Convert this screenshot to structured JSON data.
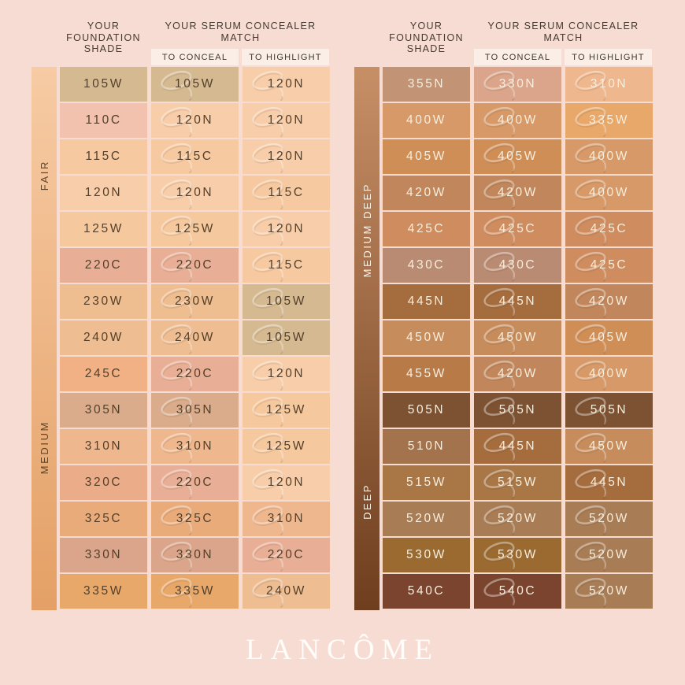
{
  "header": {
    "foundation_label": "YOUR FOUNDATION SHADE",
    "match_label": "YOUR SERUM CONCEALER MATCH",
    "conceal_label": "TO CONCEAL",
    "highlight_label": "TO HIGHLIGHT"
  },
  "logo": "LANCÔME",
  "colors": {
    "background": "#f6dcd3",
    "chip_background": "#faeee6",
    "header_text": "#463931",
    "logo_text": "#fffdf9"
  },
  "chart_data": {
    "type": "table",
    "columns": [
      "YOUR FOUNDATION SHADE",
      "TO CONCEAL",
      "TO HIGHLIGHT"
    ],
    "shade_colors": {
      "105W": "#d5ba91",
      "110C": "#f3c2ae",
      "115C": "#f7c9a1",
      "120N": "#f8cda9",
      "125W": "#f6c89e",
      "220C": "#e9af96",
      "230W": "#eebd90",
      "240W": "#eebd92",
      "245C": "#f1b184",
      "305N": "#daac8b",
      "310N": "#efb78e",
      "320C": "#ebac89",
      "325C": "#e9ab7a",
      "330N": "#daa58a",
      "335W": "#e8a869",
      "355N": "#c39376",
      "400W": "#d69967",
      "405W": "#d08e57",
      "420W": "#c1865b",
      "425C": "#cf8d5f",
      "430C": "#ba8b73",
      "445N": "#a56d3e",
      "450W": "#c78c5b",
      "455W": "#b87b48",
      "505N": "#7c5233",
      "510N": "#a3734d",
      "515W": "#a97646",
      "520W": "#a87c55",
      "530W": "#9a6a31",
      "540C": "#7b442e"
    },
    "tables": [
      {
        "name": "fair-medium",
        "text_color": "#54402a",
        "sidebar": {
          "gradient_top": "#f7cba4",
          "gradient_bottom": "#e4a066",
          "text_color": "#5f4526",
          "sections": [
            {
              "label": "FAIR",
              "rows": 6
            },
            {
              "label": "MEDIUM",
              "rows": 9
            }
          ]
        },
        "rows": [
          {
            "foundation": "105W",
            "conceal": "105W",
            "highlight": "120N"
          },
          {
            "foundation": "110C",
            "conceal": "120N",
            "highlight": "120N"
          },
          {
            "foundation": "115C",
            "conceal": "115C",
            "highlight": "120N"
          },
          {
            "foundation": "120N",
            "conceal": "120N",
            "highlight": "115C"
          },
          {
            "foundation": "125W",
            "conceal": "125W",
            "highlight": "120N"
          },
          {
            "foundation": "220C",
            "conceal": "220C",
            "highlight": "115C"
          },
          {
            "foundation": "230W",
            "conceal": "230W",
            "highlight": "105W"
          },
          {
            "foundation": "240W",
            "conceal": "240W",
            "highlight": "105W"
          },
          {
            "foundation": "245C",
            "conceal": "220C",
            "highlight": "120N"
          },
          {
            "foundation": "305N",
            "conceal": "305N",
            "highlight": "125W"
          },
          {
            "foundation": "310N",
            "conceal": "310N",
            "highlight": "125W"
          },
          {
            "foundation": "320C",
            "conceal": "220C",
            "highlight": "120N"
          },
          {
            "foundation": "325C",
            "conceal": "325C",
            "highlight": "310N"
          },
          {
            "foundation": "330N",
            "conceal": "330N",
            "highlight": "220C"
          },
          {
            "foundation": "335W",
            "conceal": "335W",
            "highlight": "240W"
          }
        ]
      },
      {
        "name": "medium-deep-deep",
        "text_color": "#f8eedd",
        "sidebar": {
          "gradient_top": "#c78f66",
          "gradient_bottom": "#6e3e1e",
          "text_color": "#fdf3e6",
          "sections": [
            {
              "label": "MEDIUM DEEP",
              "rows": 9
            },
            {
              "label": "DEEP",
              "rows": 6
            }
          ]
        },
        "rows": [
          {
            "foundation": "355N",
            "conceal": "330N",
            "highlight": "310N"
          },
          {
            "foundation": "400W",
            "conceal": "400W",
            "highlight": "335W"
          },
          {
            "foundation": "405W",
            "conceal": "405W",
            "highlight": "400W"
          },
          {
            "foundation": "420W",
            "conceal": "420W",
            "highlight": "400W"
          },
          {
            "foundation": "425C",
            "conceal": "425C",
            "highlight": "425C"
          },
          {
            "foundation": "430C",
            "conceal": "430C",
            "highlight": "425C"
          },
          {
            "foundation": "445N",
            "conceal": "445N",
            "highlight": "420W"
          },
          {
            "foundation": "450W",
            "conceal": "450W",
            "highlight": "405W"
          },
          {
            "foundation": "455W",
            "conceal": "420W",
            "highlight": "400W"
          },
          {
            "foundation": "505N",
            "conceal": "505N",
            "highlight": "505N"
          },
          {
            "foundation": "510N",
            "conceal": "445N",
            "highlight": "450W"
          },
          {
            "foundation": "515W",
            "conceal": "515W",
            "highlight": "445N"
          },
          {
            "foundation": "520W",
            "conceal": "520W",
            "highlight": "520W"
          },
          {
            "foundation": "530W",
            "conceal": "530W",
            "highlight": "520W"
          },
          {
            "foundation": "540C",
            "conceal": "540C",
            "highlight": "520W"
          }
        ]
      }
    ]
  }
}
